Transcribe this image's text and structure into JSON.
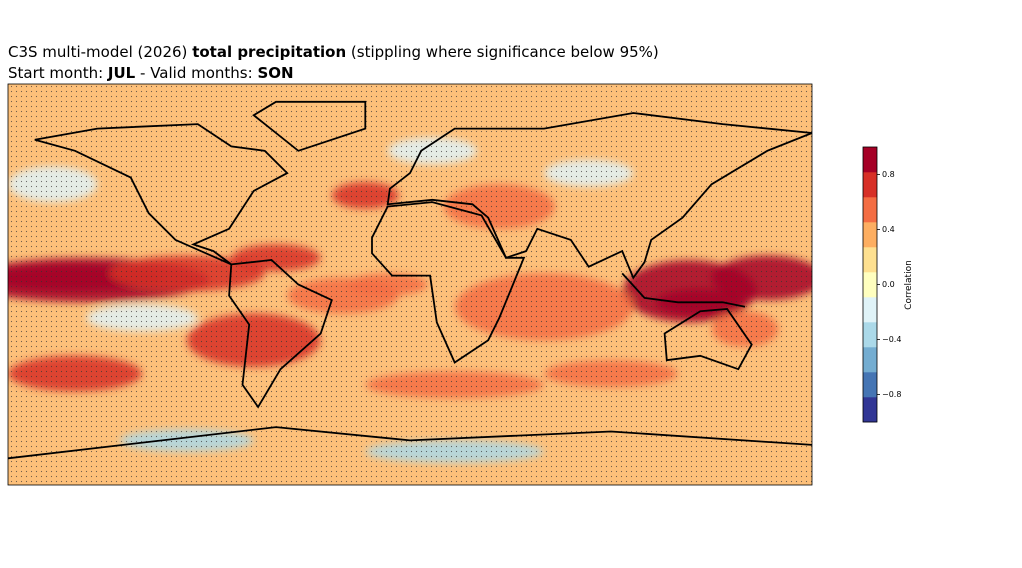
{
  "chart_data": {
    "type": "map",
    "title": {
      "prefix": "C3S multi-model (2026) ",
      "variable": "total precipitation",
      "suffix": " (stippling where significance below 95%)"
    },
    "subtitle": {
      "start_label": "Start month: ",
      "start_month": "JUL",
      "valid_label": " - Valid months: ",
      "valid_months": "SON"
    },
    "colorbar": {
      "label": "Correlation",
      "lim": [
        -1,
        1
      ],
      "ticks": [
        {
          "value": -0.8,
          "label": "−0.8"
        },
        {
          "value": -0.4,
          "label": "−0.4"
        },
        {
          "value": 0,
          "label": "0.0"
        },
        0.4,
        0.8
      ],
      "colors": [
        "#313695",
        "#4575b4",
        "#74add1",
        "#abd9e9",
        "#e0f3f8",
        "#ffffbf",
        "#fee090",
        "#fdae61",
        "#f46d43",
        "#d73027",
        "#a50026"
      ]
    }
  }
}
